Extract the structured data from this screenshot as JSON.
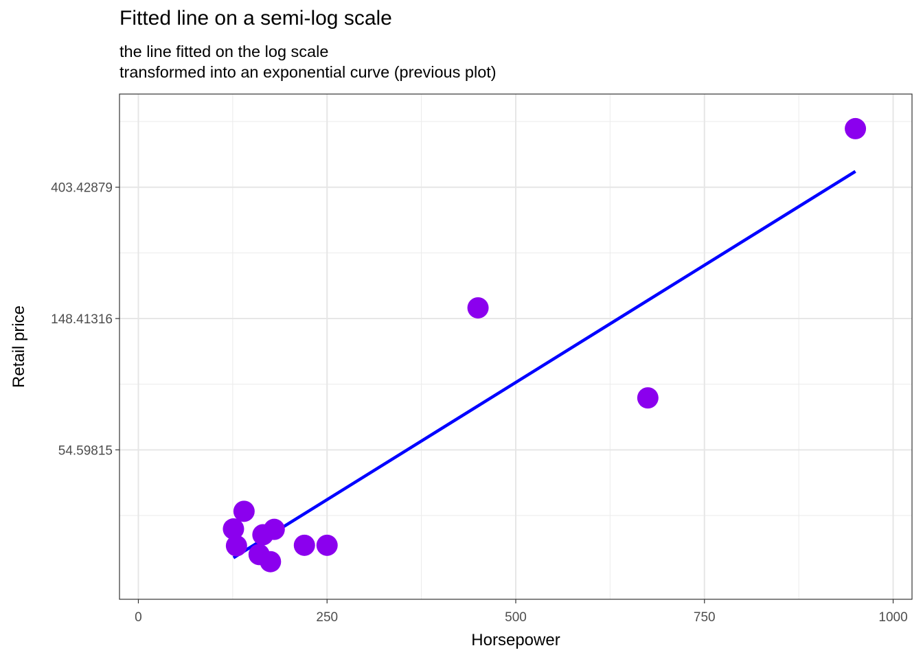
{
  "chart_data": {
    "type": "scatter",
    "title": "Fitted line on a semi-log scale",
    "subtitle": [
      "the line fitted on the log scale",
      "transformed into an exponential curve (previous plot)"
    ],
    "xlabel": "Horsepower",
    "ylabel": "Retail price",
    "x_scale": "linear",
    "y_scale": "log",
    "xlim": [
      -25,
      1025
    ],
    "ylim": [
      17.5,
      820
    ],
    "x_ticks": [
      0,
      250,
      500,
      750,
      1000
    ],
    "x_tick_labels": [
      "0",
      "250",
      "500",
      "750",
      "1000"
    ],
    "y_ticks": [
      54.59815,
      148.41316,
      403.42879
    ],
    "y_tick_labels": [
      "54.59815",
      "148.41316",
      "403.42879"
    ],
    "grid": true,
    "legend": "none",
    "points": {
      "color": "#8B00EE",
      "x": [
        126,
        140,
        130,
        160,
        165,
        175,
        180,
        220,
        250,
        450,
        675,
        950
      ],
      "y": [
        29.9,
        34.2,
        26.3,
        24.6,
        28.6,
        23.3,
        29.8,
        26.4,
        26.4,
        161.0,
        81.1,
        630.0
      ]
    },
    "fitted_line": {
      "color": "#0000FF",
      "x": [
        126,
        950
      ],
      "y": [
        24.0,
        455.0
      ]
    }
  }
}
